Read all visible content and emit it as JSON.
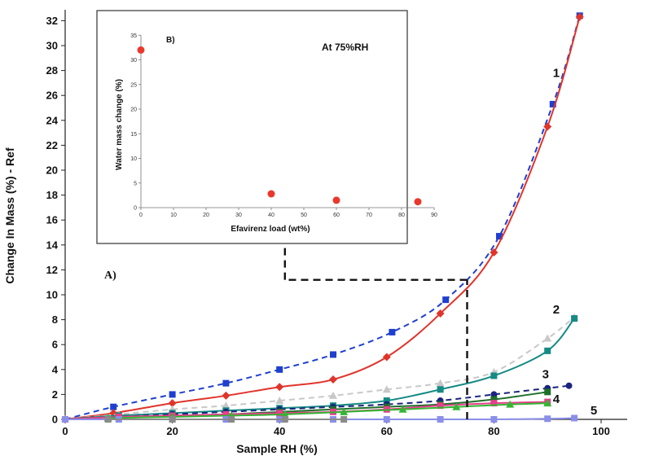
{
  "chart_data": [
    {
      "panel": "A)",
      "type": "line",
      "xlabel": "Sample RH (%)",
      "ylabel": "Change In Mass (%) - Ref",
      "xlim": [
        0,
        110
      ],
      "ylim": [
        0,
        33
      ],
      "xticks": [
        0,
        20,
        40,
        60,
        80,
        100
      ],
      "yticks": [
        0,
        2,
        4,
        6,
        8,
        10,
        12,
        14,
        16,
        18,
        20,
        22,
        24,
        26,
        28,
        30,
        32
      ],
      "grid": false,
      "series": [
        {
          "name": "1",
          "color": "#1f3fcf",
          "style": "dashed",
          "marker": "square",
          "x": [
            0,
            9,
            20,
            30,
            40,
            50,
            61,
            71,
            81,
            91,
            96
          ],
          "y": [
            0,
            1.0,
            2.0,
            2.9,
            4.0,
            5.2,
            7.0,
            9.6,
            14.7,
            25.3,
            32.4
          ]
        },
        {
          "name": "1",
          "color": "#e0342b",
          "style": "solid",
          "marker": "diamond",
          "x": [
            0,
            9,
            20,
            30,
            40,
            50,
            60,
            70,
            80,
            90,
            96
          ],
          "y": [
            0,
            0.5,
            1.3,
            1.9,
            2.6,
            3.2,
            5.0,
            8.5,
            13.4,
            23.5,
            32.3
          ]
        },
        {
          "name": "2",
          "color": "#c8c8c8",
          "style": "dashed",
          "marker": "triangle",
          "x": [
            0,
            10,
            20,
            30,
            40,
            50,
            60,
            70,
            80,
            90,
            95
          ],
          "y": [
            0,
            0.4,
            0.8,
            1.1,
            1.5,
            1.9,
            2.4,
            2.9,
            3.8,
            6.5,
            8.2
          ]
        },
        {
          "name": "2",
          "color": "#158a84",
          "style": "solid",
          "marker": "square",
          "x": [
            0,
            10,
            20,
            30,
            40,
            50,
            60,
            70,
            80,
            90,
            95
          ],
          "y": [
            0,
            0.3,
            0.5,
            0.7,
            0.9,
            1.1,
            1.5,
            2.4,
            3.5,
            5.5,
            8.1
          ]
        },
        {
          "name": "3",
          "color": "#1a237e",
          "style": "dashed",
          "marker": "circle",
          "x": [
            0,
            10,
            20,
            30,
            40,
            50,
            60,
            70,
            80,
            90,
            94
          ],
          "y": [
            0,
            0.2,
            0.4,
            0.6,
            0.8,
            1.0,
            1.2,
            1.5,
            2.0,
            2.5,
            2.7
          ]
        },
        {
          "name": "4",
          "color": "#1f6f2a",
          "style": "solid",
          "marker": "square",
          "x": [
            0,
            10,
            20,
            30,
            40,
            50,
            60,
            70,
            80,
            90
          ],
          "y": [
            0,
            0.2,
            0.3,
            0.4,
            0.6,
            0.8,
            1.0,
            1.2,
            1.6,
            2.2
          ]
        },
        {
          "name": "4",
          "color": "#e63f8a",
          "style": "solid",
          "marker": "square",
          "x": [
            0,
            10,
            20,
            30,
            40,
            50,
            60,
            70,
            80,
            90
          ],
          "y": [
            0,
            0.2,
            0.3,
            0.4,
            0.5,
            0.6,
            0.8,
            1.1,
            1.3,
            1.4
          ]
        },
        {
          "name": "4",
          "color": "#34b534",
          "style": "solid",
          "marker": "triangle",
          "x": [
            8,
            20,
            31,
            41,
            52,
            63,
            73,
            83,
            90
          ],
          "y": [
            0.1,
            0.2,
            0.3,
            0.4,
            0.6,
            0.8,
            1.0,
            1.2,
            1.3
          ]
        },
        {
          "name": "5",
          "color": "#8a8fe8",
          "style": "solid",
          "marker": "square",
          "x": [
            0,
            10,
            20,
            30,
            40,
            50,
            60,
            70,
            80,
            90,
            95
          ],
          "y": [
            0,
            0,
            0,
            0,
            0,
            0,
            0,
            0,
            0,
            0.05,
            0.1
          ]
        },
        {
          "name": "",
          "color": "#8a8a8a",
          "style": "solid",
          "marker": "square",
          "x": [
            8,
            20,
            31,
            41,
            52
          ],
          "y": [
            0,
            0,
            0,
            0,
            0
          ]
        }
      ],
      "curve_labels": [
        {
          "text": "1",
          "x": 91,
          "y": 27.5
        },
        {
          "text": "2",
          "x": 91,
          "y": 8.5
        },
        {
          "text": "3",
          "x": 89,
          "y": 3.3
        },
        {
          "text": "4",
          "x": 91,
          "y": 1.3
        },
        {
          "text": "5",
          "x": 98,
          "y": 0.4
        }
      ],
      "guide_lines": {
        "x": 75,
        "y": 11.2,
        "to_x": 41
      }
    },
    {
      "panel": "B)",
      "type": "scatter",
      "title": "At 75%RH",
      "xlabel": "Efavirenz load   (wt%)",
      "ylabel": "Water mass change (%)",
      "xlim": [
        0,
        90
      ],
      "ylim": [
        0,
        35
      ],
      "xticks": [
        0,
        10,
        20,
        30,
        40,
        50,
        60,
        70,
        80,
        90
      ],
      "yticks": [
        0,
        5,
        10,
        15,
        20,
        25,
        30,
        35
      ],
      "color": "#e8392c",
      "x": [
        0,
        40,
        60,
        85
      ],
      "y": [
        32.0,
        2.8,
        1.5,
        1.2
      ]
    }
  ]
}
